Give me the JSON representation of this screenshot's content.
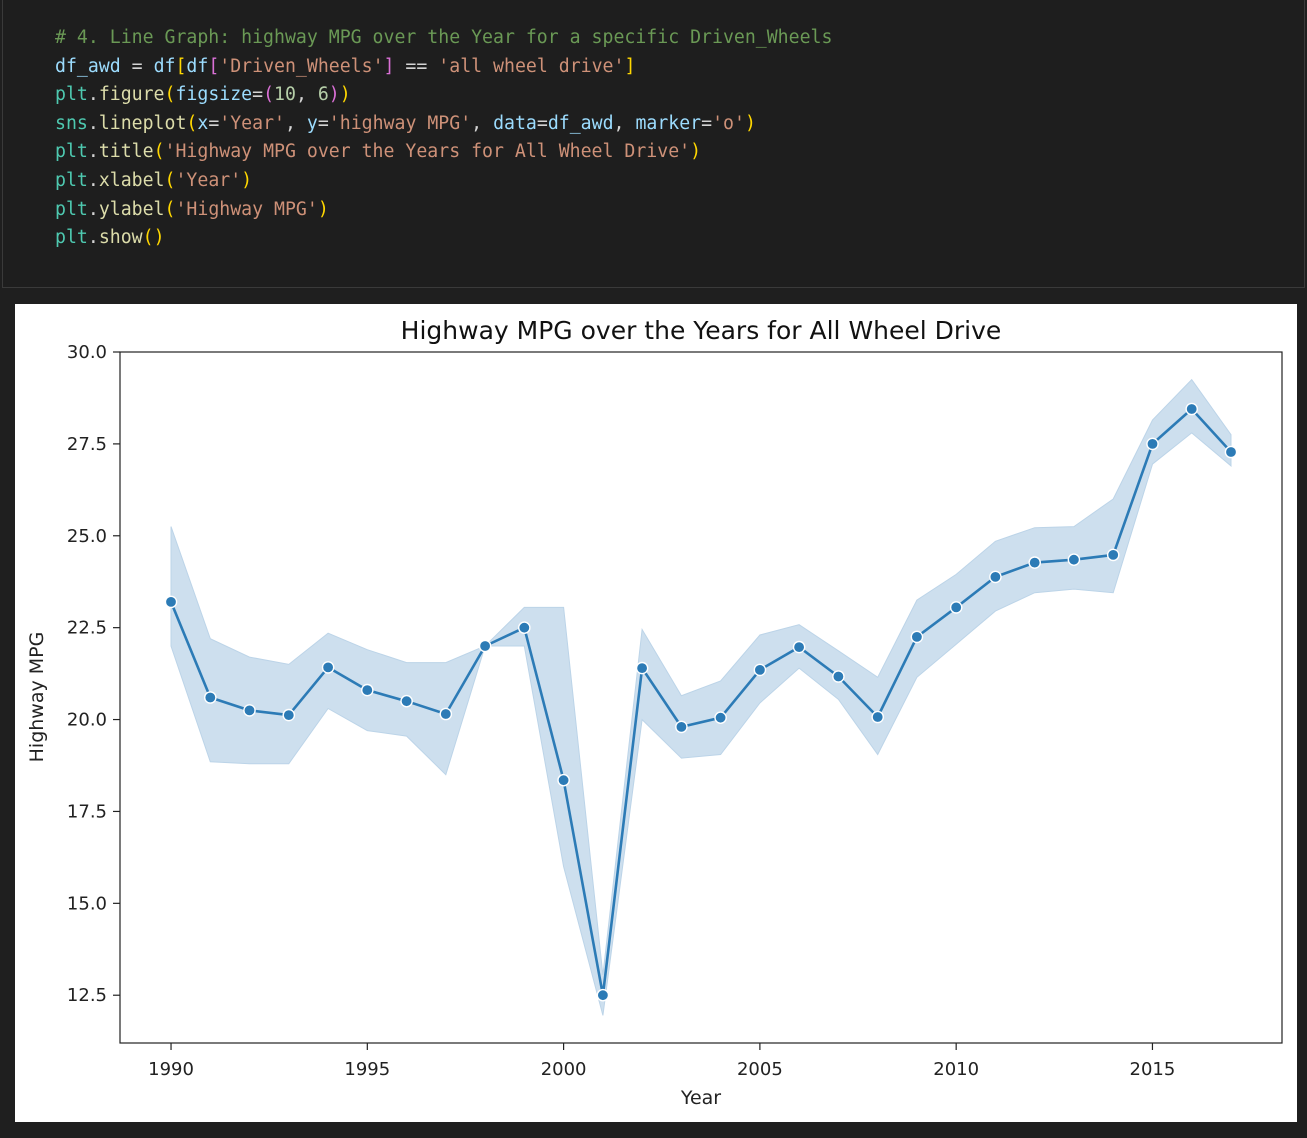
{
  "code_cell": {
    "lines": [
      [
        {
          "t": "# 4. Line Graph: highway MPG over the Year for a specific Driven_Wheels",
          "c": "#6a9955"
        }
      ],
      [
        {
          "t": "df_awd",
          "c": "#9cdcfe"
        },
        {
          "t": " = ",
          "c": "#d4d4d4"
        },
        {
          "t": "df",
          "c": "#9cdcfe"
        },
        {
          "t": "[",
          "c": "#ffd700"
        },
        {
          "t": "df",
          "c": "#9cdcfe"
        },
        {
          "t": "[",
          "c": "#da70d6"
        },
        {
          "t": "'Driven_Wheels'",
          "c": "#ce9178"
        },
        {
          "t": "]",
          "c": "#da70d6"
        },
        {
          "t": " == ",
          "c": "#d4d4d4"
        },
        {
          "t": "'all wheel drive'",
          "c": "#ce9178"
        },
        {
          "t": "]",
          "c": "#ffd700"
        }
      ],
      [
        {
          "t": "plt",
          "c": "#4ec9b0"
        },
        {
          "t": ".",
          "c": "#d4d4d4"
        },
        {
          "t": "figure",
          "c": "#dcdcaa"
        },
        {
          "t": "(",
          "c": "#ffd700"
        },
        {
          "t": "figsize",
          "c": "#9cdcfe"
        },
        {
          "t": "=",
          "c": "#d4d4d4"
        },
        {
          "t": "(",
          "c": "#da70d6"
        },
        {
          "t": "10",
          "c": "#b5cea8"
        },
        {
          "t": ", ",
          "c": "#d4d4d4"
        },
        {
          "t": "6",
          "c": "#b5cea8"
        },
        {
          "t": ")",
          "c": "#da70d6"
        },
        {
          "t": ")",
          "c": "#ffd700"
        }
      ],
      [
        {
          "t": "sns",
          "c": "#4ec9b0"
        },
        {
          "t": ".",
          "c": "#d4d4d4"
        },
        {
          "t": "lineplot",
          "c": "#dcdcaa"
        },
        {
          "t": "(",
          "c": "#ffd700"
        },
        {
          "t": "x",
          "c": "#9cdcfe"
        },
        {
          "t": "=",
          "c": "#d4d4d4"
        },
        {
          "t": "'Year'",
          "c": "#ce9178"
        },
        {
          "t": ", ",
          "c": "#d4d4d4"
        },
        {
          "t": "y",
          "c": "#9cdcfe"
        },
        {
          "t": "=",
          "c": "#d4d4d4"
        },
        {
          "t": "'highway MPG'",
          "c": "#ce9178"
        },
        {
          "t": ", ",
          "c": "#d4d4d4"
        },
        {
          "t": "data",
          "c": "#9cdcfe"
        },
        {
          "t": "=",
          "c": "#d4d4d4"
        },
        {
          "t": "df_awd",
          "c": "#9cdcfe"
        },
        {
          "t": ", ",
          "c": "#d4d4d4"
        },
        {
          "t": "marker",
          "c": "#9cdcfe"
        },
        {
          "t": "=",
          "c": "#d4d4d4"
        },
        {
          "t": "'o'",
          "c": "#ce9178"
        },
        {
          "t": ")",
          "c": "#ffd700"
        }
      ],
      [
        {
          "t": "plt",
          "c": "#4ec9b0"
        },
        {
          "t": ".",
          "c": "#d4d4d4"
        },
        {
          "t": "title",
          "c": "#dcdcaa"
        },
        {
          "t": "(",
          "c": "#ffd700"
        },
        {
          "t": "'Highway MPG over the Years for All Wheel Drive'",
          "c": "#ce9178"
        },
        {
          "t": ")",
          "c": "#ffd700"
        }
      ],
      [
        {
          "t": "plt",
          "c": "#4ec9b0"
        },
        {
          "t": ".",
          "c": "#d4d4d4"
        },
        {
          "t": "xlabel",
          "c": "#dcdcaa"
        },
        {
          "t": "(",
          "c": "#ffd700"
        },
        {
          "t": "'Year'",
          "c": "#ce9178"
        },
        {
          "t": ")",
          "c": "#ffd700"
        }
      ],
      [
        {
          "t": "plt",
          "c": "#4ec9b0"
        },
        {
          "t": ".",
          "c": "#d4d4d4"
        },
        {
          "t": "ylabel",
          "c": "#dcdcaa"
        },
        {
          "t": "(",
          "c": "#ffd700"
        },
        {
          "t": "'Highway MPG'",
          "c": "#ce9178"
        },
        {
          "t": ")",
          "c": "#ffd700"
        }
      ],
      [
        {
          "t": "plt",
          "c": "#4ec9b0"
        },
        {
          "t": ".",
          "c": "#d4d4d4"
        },
        {
          "t": "show",
          "c": "#dcdcaa"
        },
        {
          "t": "(",
          "c": "#ffd700"
        },
        {
          "t": ")",
          "c": "#ffd700"
        }
      ]
    ]
  },
  "chart_data": {
    "type": "line",
    "title": "Highway MPG over the Years for All Wheel Drive",
    "xlabel": "Year",
    "ylabel": "Highway MPG",
    "xlim": [
      1988.7,
      2018.3
    ],
    "ylim": [
      11.2,
      30.0
    ],
    "xticks": [
      1990,
      1995,
      2000,
      2005,
      2010,
      2015
    ],
    "yticks": [
      12.5,
      15.0,
      17.5,
      20.0,
      22.5,
      25.0,
      27.5,
      30.0
    ],
    "ytick_labels": [
      "12.5",
      "15.0",
      "17.5",
      "20.0",
      "22.5",
      "25.0",
      "27.5",
      "30.0"
    ],
    "grid": false,
    "line_color": "#2c7bb6",
    "band_color": "#bcd4e8",
    "marker": "o",
    "x": [
      1990,
      1991,
      1992,
      1993,
      1994,
      1995,
      1996,
      1997,
      1998,
      1999,
      2000,
      2001,
      2002,
      2003,
      2004,
      2005,
      2006,
      2007,
      2008,
      2009,
      2010,
      2011,
      2012,
      2013,
      2014,
      2015,
      2016,
      2017
    ],
    "y": [
      23.2,
      20.6,
      20.25,
      20.12,
      21.42,
      20.8,
      20.5,
      20.15,
      22.0,
      22.5,
      18.35,
      12.5,
      21.4,
      19.8,
      20.05,
      21.35,
      21.97,
      21.17,
      20.07,
      22.25,
      23.05,
      23.88,
      24.27,
      24.35,
      24.48,
      27.5,
      28.45,
      27.28
    ],
    "ci_low": [
      22.0,
      18.85,
      18.8,
      18.8,
      20.3,
      19.7,
      19.55,
      18.5,
      22.0,
      22.0,
      16.0,
      11.95,
      20.0,
      18.95,
      19.05,
      20.45,
      21.4,
      20.55,
      19.05,
      21.15,
      22.05,
      22.95,
      23.45,
      23.55,
      23.45,
      26.95,
      27.8,
      26.9
    ],
    "ci_high": [
      25.25,
      22.2,
      21.7,
      21.5,
      22.35,
      21.9,
      21.55,
      21.55,
      22.0,
      23.05,
      23.05,
      13.05,
      22.45,
      20.65,
      21.05,
      22.3,
      22.58,
      21.87,
      21.15,
      23.25,
      23.95,
      24.85,
      25.22,
      25.25,
      26.0,
      28.15,
      29.25,
      27.75
    ]
  }
}
